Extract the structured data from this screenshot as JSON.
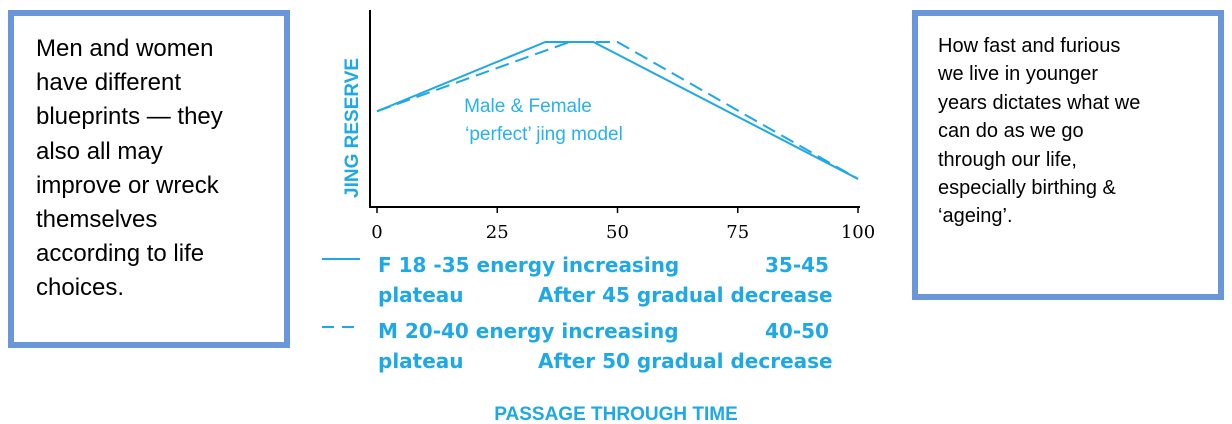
{
  "left_box": {
    "lines": [
      "Men and women",
      "have different",
      "blueprints — they",
      "also all may",
      "improve or wreck",
      "themselves",
      "according to life",
      "choices."
    ]
  },
  "right_box": {
    "lines": [
      "How fast and furious",
      "we live in younger",
      "years dictates what we",
      "can do as we go",
      "through our life,",
      "especially birthing &",
      "‘ageing’."
    ]
  },
  "chart_data": {
    "type": "line",
    "ylabel": "JING RESERVE",
    "xlabel": "PASSAGE THROUGH TIME",
    "xlim": [
      0,
      100
    ],
    "ylim": [
      0,
      100
    ],
    "xticks": [
      "0",
      "25",
      "50",
      "75",
      "100"
    ],
    "y_tick_labels": false,
    "annotation": [
      "Male & Female",
      "‘perfect’ jing model"
    ],
    "series": [
      {
        "name": "F 18 -35 energy increasing 35-45 plateau After 45 gradual decrease",
        "style": "solid",
        "x": [
          0,
          35,
          45,
          100
        ],
        "y": [
          58,
          100,
          100,
          17
        ]
      },
      {
        "name": "M 20-40 energy increasing 40-50 plateau After 50 gradual decrease",
        "style": "dashed",
        "x": [
          0,
          40,
          50,
          100
        ],
        "y": [
          58,
          100,
          100,
          17
        ]
      }
    ],
    "legend": [
      {
        "line1_left": "F 18 -35 energy increasing",
        "line1_right": "35-45",
        "line2_left": "plateau",
        "line2_right": "After 45 gradual decrease",
        "style": "solid"
      },
      {
        "line1_left": "M 20-40 energy increasing",
        "line1_right": "40-50",
        "line2_left": "plateau",
        "line2_right": "After 50 gradual decrease",
        "style": "dashed"
      }
    ],
    "color": "#1fa8e6"
  }
}
